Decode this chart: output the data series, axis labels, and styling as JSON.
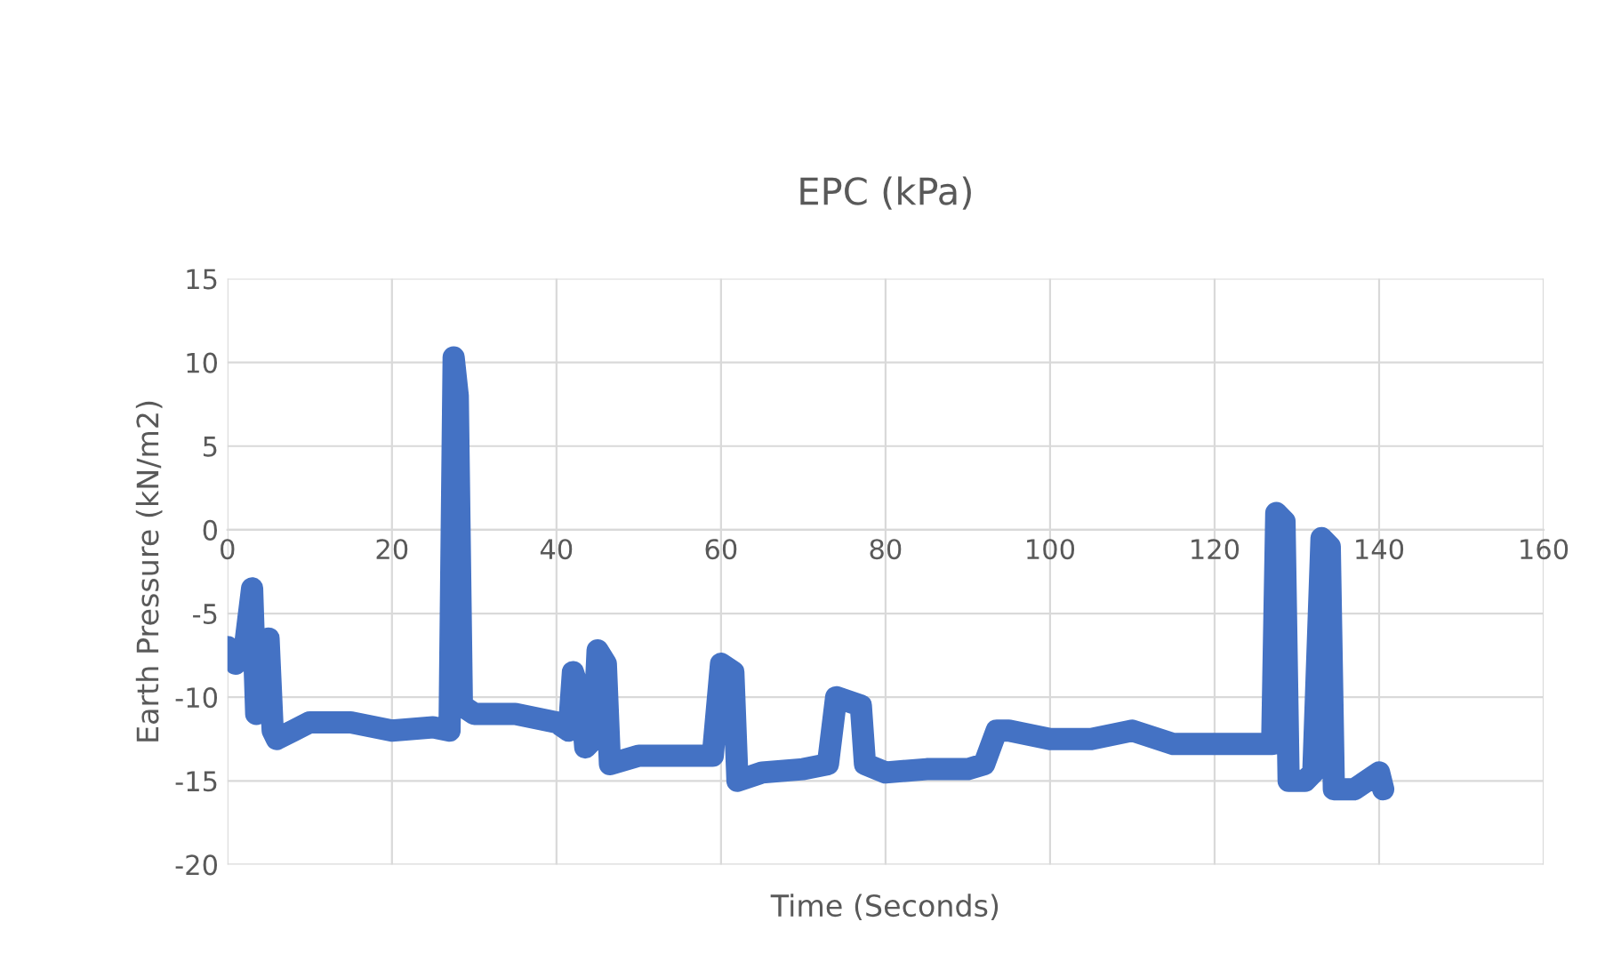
{
  "chart_data": {
    "type": "line",
    "title": "EPC (kPa)",
    "xlabel": "Time (Seconds)",
    "ylabel": "Earth Pressure (kN/m2)",
    "xlim": [
      0,
      160
    ],
    "xticks": [
      0,
      20,
      40,
      60,
      80,
      100,
      120,
      140,
      160
    ],
    "ylim": [
      -20,
      15
    ],
    "yticks": [
      -20,
      -15,
      -10,
      -5,
      0,
      5,
      10,
      15
    ],
    "grid": true,
    "line_style": "solid",
    "series": [
      {
        "color": "#4472c4",
        "x": [
          0,
          1,
          2,
          3,
          3.5,
          4,
          5,
          5.5,
          6,
          8,
          10,
          15,
          20,
          25,
          27,
          27.5,
          28,
          28.5,
          30,
          35,
          40,
          41.5,
          42,
          43,
          43.5,
          44.5,
          45,
          46,
          46.5,
          50,
          55,
          59,
          60,
          61.5,
          62,
          65,
          70,
          73,
          74,
          77,
          77.5,
          80,
          85,
          90,
          92,
          93.5,
          95,
          100,
          105,
          110,
          115,
          120,
          127,
          127.5,
          128.5,
          129,
          131,
          132,
          133,
          134,
          134.5,
          137,
          140,
          140.5
        ],
        "values": [
          -7,
          -8,
          -7.5,
          -3.5,
          -11,
          -8,
          -6.5,
          -12,
          -12.5,
          -12,
          -11.5,
          -11.5,
          -12,
          -11.8,
          -12,
          10.3,
          8,
          -10.5,
          -11,
          -11,
          -11.5,
          -12,
          -8.5,
          -10,
          -13,
          -12.5,
          -7.2,
          -8,
          -14,
          -13.5,
          -13.5,
          -13.5,
          -8,
          -8.5,
          -15,
          -14.5,
          -14.3,
          -14,
          -10,
          -10.5,
          -14,
          -14.5,
          -14.3,
          -14.3,
          -14,
          -12,
          -12,
          -12.5,
          -12.5,
          -12,
          -12.8,
          -12.8,
          -12.8,
          1,
          0.5,
          -15,
          -15,
          -14.5,
          -0.5,
          -1,
          -15.5,
          -15.5,
          -14.5,
          -15.5
        ]
      }
    ]
  }
}
